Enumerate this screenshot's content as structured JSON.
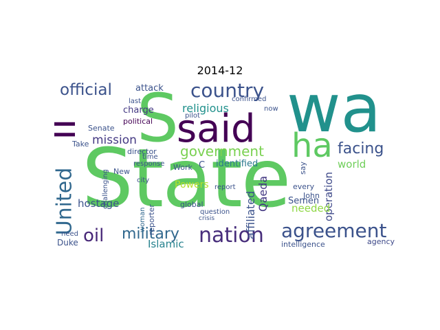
{
  "title": "2014-12",
  "palette": {
    "viridis_dark": "#440154",
    "viridis_indigo": "#3b528b",
    "viridis_teal": "#21918c",
    "viridis_green": "#5ec962",
    "viridis_yellow": "#fde725"
  },
  "words": [
    {
      "text": "State"
    },
    {
      "text": "wa"
    },
    {
      "text": "said"
    },
    {
      "text": "S"
    },
    {
      "text": "ha"
    },
    {
      "text": "ll"
    },
    {
      "text": "nation"
    },
    {
      "text": "country"
    },
    {
      "text": "agreement"
    },
    {
      "text": "official"
    },
    {
      "text": "military"
    },
    {
      "text": "oil"
    },
    {
      "text": "United"
    },
    {
      "text": "government"
    },
    {
      "text": "facing"
    },
    {
      "text": "religious"
    },
    {
      "text": "mission"
    },
    {
      "text": "Powers"
    },
    {
      "text": "world"
    },
    {
      "text": "Islamic"
    },
    {
      "text": "hostage"
    },
    {
      "text": "Qaeda"
    },
    {
      "text": "affiliated"
    },
    {
      "text": "operation"
    },
    {
      "text": "intelligence"
    },
    {
      "text": "needed"
    },
    {
      "text": "Semen"
    },
    {
      "text": "identified"
    },
    {
      "text": "attack"
    },
    {
      "text": "charge"
    },
    {
      "text": "political"
    },
    {
      "text": "Senate"
    },
    {
      "text": "director"
    },
    {
      "text": "Duke"
    },
    {
      "text": "agency"
    },
    {
      "text": "John"
    },
    {
      "text": "every"
    },
    {
      "text": "global"
    },
    {
      "text": "question"
    },
    {
      "text": "crisis"
    },
    {
      "text": "report"
    },
    {
      "text": "reporter"
    },
    {
      "text": "woman"
    },
    {
      "text": "response"
    },
    {
      "text": "Work"
    },
    {
      "text": "city"
    },
    {
      "text": "New"
    },
    {
      "text": "Take"
    },
    {
      "text": "time"
    },
    {
      "text": "confirmed"
    },
    {
      "text": "last"
    },
    {
      "text": "now"
    },
    {
      "text": "pilot"
    },
    {
      "text": "need"
    },
    {
      "text": "challenging"
    },
    {
      "text": "say"
    },
    {
      "text": "C"
    }
  ]
}
